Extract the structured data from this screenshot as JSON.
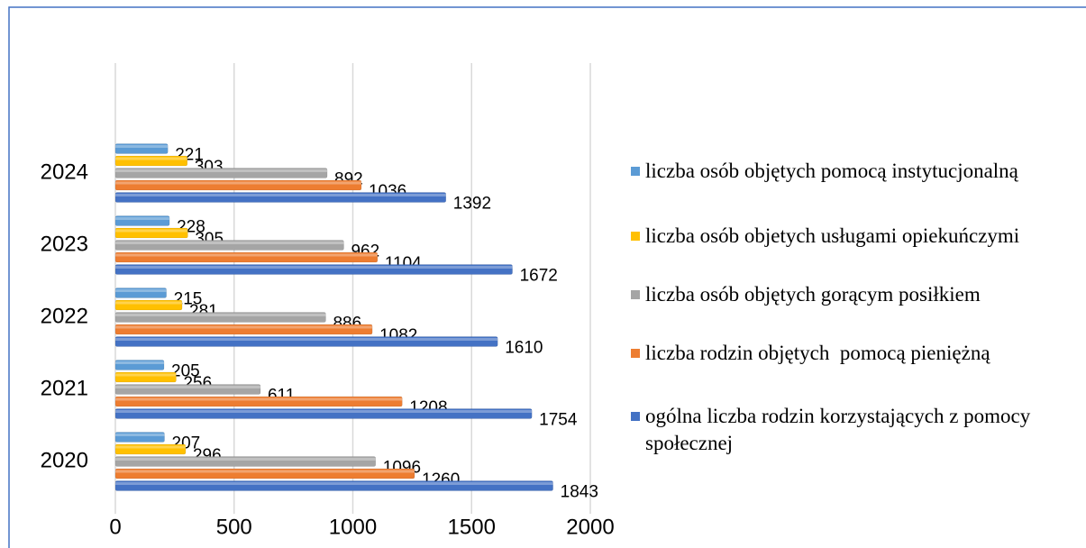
{
  "chart_data": {
    "type": "barh",
    "categories": [
      "2020",
      "2021",
      "2022",
      "2023",
      "2024"
    ],
    "series": [
      {
        "name": "liczba osób objętych pomocą instytucjonalną",
        "color": "#5b9bd5",
        "values": [
          207,
          205,
          215,
          228,
          221
        ]
      },
      {
        "name": "liczba osób objetych usługami opiekuńczymi",
        "color": "#ffc000",
        "values": [
          296,
          256,
          281,
          305,
          303
        ]
      },
      {
        "name": "liczba osób objętych gorącym posiłkiem",
        "color": "#a5a5a5",
        "values": [
          1096,
          611,
          886,
          962,
          892
        ]
      },
      {
        "name": "liczba rodzin objętych  pomocą pieniężną",
        "color": "#ed7d31",
        "values": [
          1260,
          1208,
          1082,
          1104,
          1036
        ]
      },
      {
        "name": "ogólna liczba rodzin korzystających z pomocy społecznej",
        "color": "#4472c4",
        "values": [
          1843,
          1754,
          1610,
          1672,
          1392
        ]
      }
    ],
    "xlim": [
      0,
      2000
    ],
    "xticks": [
      0,
      500,
      1000,
      1500,
      2000
    ],
    "grid": true,
    "legend": "right"
  }
}
